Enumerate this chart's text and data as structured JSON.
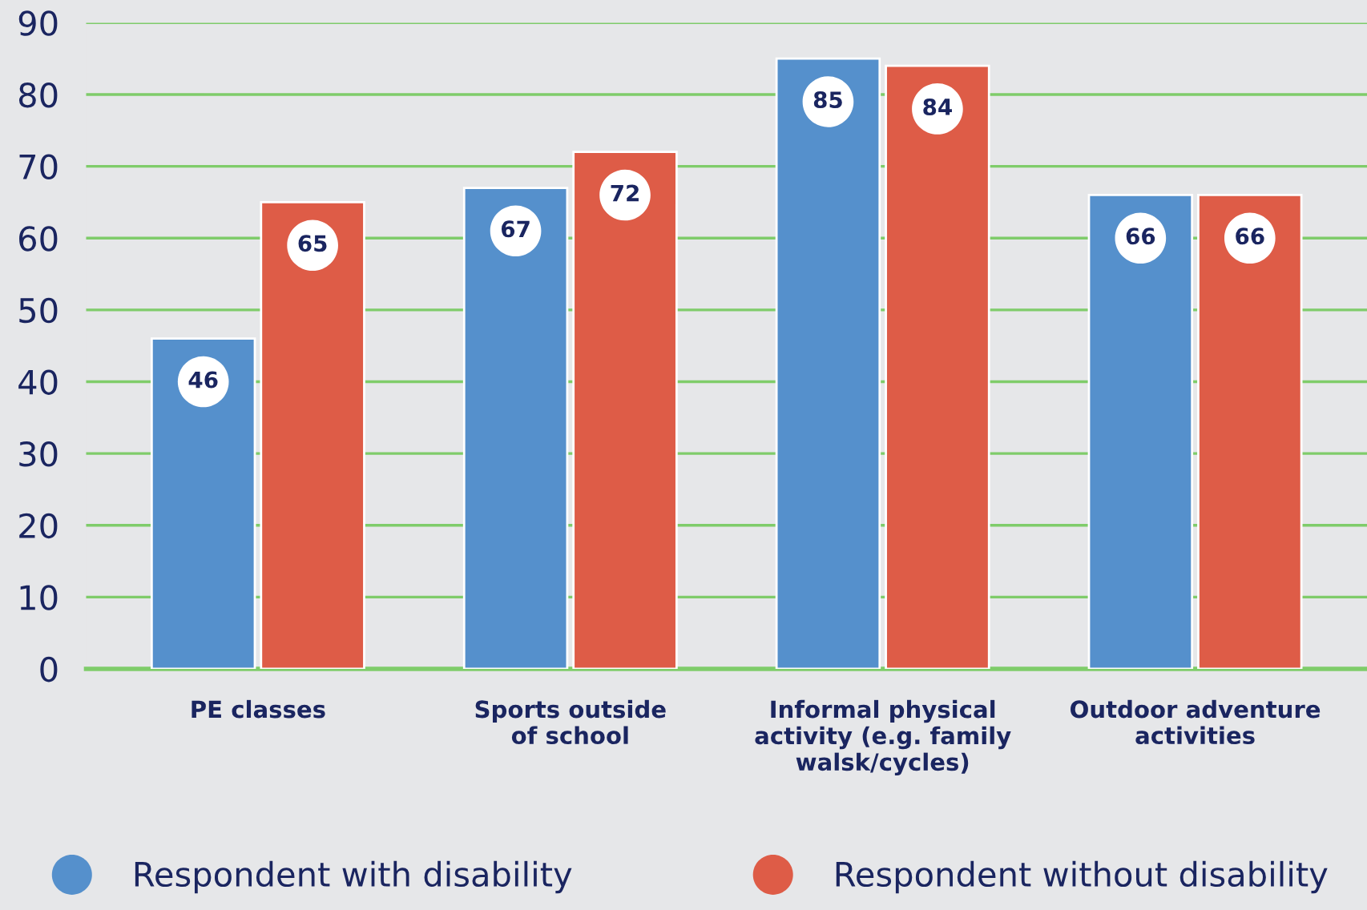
{
  "chart_data": {
    "type": "bar",
    "categories": [
      "PE classes",
      "Sports outside\nof school",
      "Informal physical\nactivity (e.g. family\nwalsk/cycles)",
      "Outdoor adventure\nactivities"
    ],
    "series": [
      {
        "name": "Respondent with disability",
        "color": "#5590cc",
        "values": [
          46,
          67,
          85,
          66
        ]
      },
      {
        "name": "Respondent without disability",
        "color": "#de5c47",
        "values": [
          65,
          72,
          84,
          66
        ]
      }
    ],
    "ylim": [
      0,
      90
    ],
    "yticks": [
      0,
      10,
      20,
      30,
      40,
      50,
      60,
      70,
      80,
      90
    ],
    "grid": "y",
    "legend": "bottom",
    "data_labels": true
  }
}
